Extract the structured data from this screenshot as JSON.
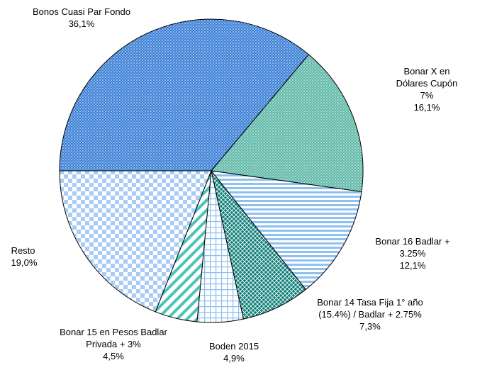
{
  "chart_data": {
    "type": "pie",
    "categories": [
      "Bonos Cuasi Par Fondo",
      "Bonar X en Dólares Cupón\n7%",
      "Bonar 16 Badlar + 3.25%",
      "Bonar 14 Tasa Fija 1° año\n(15.4%) / Badlar + 2.75%",
      "Boden 2015",
      "Bonar 15 en Pesos Badlar\nPrivada + 3%",
      "Resto"
    ],
    "values": [
      36.1,
      16.1,
      12.1,
      7.3,
      4.9,
      4.5,
      19.0
    ],
    "value_labels": [
      "36,1%",
      "16,1%",
      "12,1%",
      "7,3%",
      "4,9%",
      "4,5%",
      "19,0%"
    ],
    "colors": [
      "#3a7fd5",
      "#5fb8a8",
      "#8ec0f0",
      "#0f7f78",
      "#8ec0f0",
      "#4cc4b8",
      "#a8ccf5"
    ],
    "patterns": [
      "dots",
      "dots",
      "hstripes",
      "crosshatch",
      "grid",
      "diagonal",
      "checker"
    ]
  }
}
